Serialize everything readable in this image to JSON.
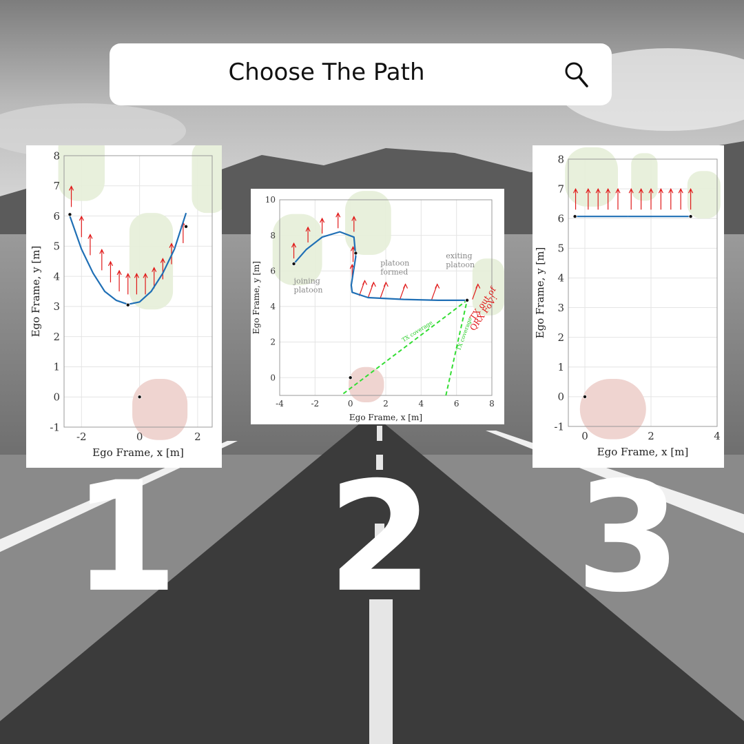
{
  "search": {
    "text": "Choose The Path",
    "icon": "search-icon"
  },
  "options": [
    {
      "number": "1"
    },
    {
      "number": "2"
    },
    {
      "number": "3"
    }
  ],
  "colors": {
    "path": "#1f6fb5",
    "arrow": "#e01818",
    "coverage": "#33dd33",
    "ego_vehicle": "#efd4d0",
    "other_vehicle": "#e6eed8"
  },
  "chart_data": [
    {
      "type": "line",
      "xlabel": "Ego Frame, x   [m]",
      "ylabel": "Ego Frame, y   [m]",
      "xlim": [
        -2.6,
        2.5
      ],
      "ylim": [
        -1,
        8
      ],
      "xticks": [
        -2,
        0,
        2
      ],
      "yticks": [
        -1,
        0,
        1,
        2,
        3,
        4,
        5,
        6,
        7,
        8
      ],
      "grid": true,
      "series": [
        {
          "x": [
            -2.4,
            -2.0,
            -1.6,
            -1.2,
            -0.8,
            -0.4,
            0.0,
            0.4,
            0.8,
            1.2,
            1.6
          ],
          "y": [
            6.0,
            4.9,
            4.1,
            3.5,
            3.2,
            3.07,
            3.15,
            3.5,
            4.1,
            4.9,
            6.1
          ]
        }
      ],
      "points": [
        {
          "x": -2.4,
          "y": 6.05
        },
        {
          "x": -0.4,
          "y": 3.05
        },
        {
          "x": 1.6,
          "y": 5.65
        },
        {
          "x": 0,
          "y": 0
        }
      ],
      "arrows": [
        {
          "x": -2.35,
          "y": 6.3
        },
        {
          "x": -2.0,
          "y": 5.3
        },
        {
          "x": -1.7,
          "y": 4.7
        },
        {
          "x": -1.3,
          "y": 4.2
        },
        {
          "x": -1.0,
          "y": 3.8
        },
        {
          "x": -0.7,
          "y": 3.5
        },
        {
          "x": -0.4,
          "y": 3.4
        },
        {
          "x": -0.1,
          "y": 3.4
        },
        {
          "x": 0.2,
          "y": 3.4
        },
        {
          "x": 0.5,
          "y": 3.6
        },
        {
          "x": 0.8,
          "y": 3.9
        },
        {
          "x": 1.1,
          "y": 4.4
        },
        {
          "x": 1.5,
          "y": 5.1
        }
      ]
    },
    {
      "type": "line",
      "xlabel": "Ego Frame, x   [m]",
      "ylabel": "Ego Frame, y   [m]",
      "xlim": [
        -4,
        8
      ],
      "ylim": [
        -1,
        10
      ],
      "xticks": [
        -4,
        -2,
        0,
        2,
        4,
        6,
        8
      ],
      "yticks": [
        0,
        2,
        4,
        6,
        8,
        10
      ],
      "grid": true,
      "series": [
        {
          "x": [
            -3.2,
            -2.5,
            -1.6,
            -0.6,
            0.2,
            0.3,
            0.05,
            0.1,
            1.0,
            3.0,
            5.0,
            6.6
          ],
          "y": [
            6.4,
            7.2,
            7.9,
            8.2,
            7.9,
            6.8,
            5.2,
            4.8,
            4.5,
            4.4,
            4.35,
            4.35
          ]
        }
      ],
      "points": [
        {
          "x": -3.2,
          "y": 6.4
        },
        {
          "x": 0.3,
          "y": 7.0
        },
        {
          "x": 6.6,
          "y": 4.35
        },
        {
          "x": 0,
          "y": 0
        }
      ],
      "annotations": [
        {
          "text": "joining",
          "x": -3.2,
          "y": 5.3,
          "color": "#888888"
        },
        {
          "text": "platoon",
          "x": -3.2,
          "y": 4.8,
          "color": "#888888"
        },
        {
          "text": "platoon",
          "x": 1.7,
          "y": 6.3,
          "color": "#888888"
        },
        {
          "text": "formed",
          "x": 1.7,
          "y": 5.8,
          "color": "#888888"
        },
        {
          "text": "exiting",
          "x": 5.4,
          "y": 6.7,
          "color": "#888888"
        },
        {
          "text": "platoon",
          "x": 5.4,
          "y": 6.2,
          "color": "#888888"
        },
        {
          "text": "TX coverage",
          "x": 3.0,
          "y": 2.0,
          "color": "#22cc22"
        },
        {
          "text": "TX coverage",
          "x": 6.2,
          "y": 1.5,
          "color": "#22cc22"
        },
        {
          "text": "TX out of",
          "x": 7.0,
          "y": 3.2,
          "color": "#e01818"
        },
        {
          "text": "QRX FoV!",
          "x": 7.0,
          "y": 2.6,
          "color": "#e01818"
        }
      ],
      "arrows": [
        {
          "x": -3.2,
          "y": 6.7
        },
        {
          "x": -2.4,
          "y": 7.6
        },
        {
          "x": -1.6,
          "y": 8.1
        },
        {
          "x": -0.7,
          "y": 8.4
        },
        {
          "x": 0.2,
          "y": 8.2
        },
        {
          "x": 0.15,
          "y": 6.5
        },
        {
          "x": 0.1,
          "y": 5.5
        },
        {
          "x": 0.5,
          "y": 4.6
        },
        {
          "x": 1.0,
          "y": 4.5
        },
        {
          "x": 1.7,
          "y": 4.5
        },
        {
          "x": 2.8,
          "y": 4.4
        },
        {
          "x": 4.6,
          "y": 4.4
        },
        {
          "x": 6.9,
          "y": 4.4
        }
      ]
    },
    {
      "type": "line",
      "xlabel": "Ego Frame, x   [m]",
      "ylabel": "Ego Frame, y   [m]",
      "xlim": [
        -0.5,
        4
      ],
      "ylim": [
        -1,
        8
      ],
      "xticks": [
        0,
        2,
        4
      ],
      "yticks": [
        -1,
        0,
        1,
        2,
        3,
        4,
        5,
        6,
        7,
        8
      ],
      "grid": true,
      "series": [
        {
          "x": [
            -0.3,
            1.3
          ],
          "y": [
            6.07,
            6.07
          ]
        },
        {
          "x": [
            1.3,
            3.2
          ],
          "y": [
            6.07,
            6.07
          ]
        }
      ],
      "points": [
        {
          "x": -0.3,
          "y": 6.07
        },
        {
          "x": 3.2,
          "y": 6.07
        },
        {
          "x": 0,
          "y": 0
        }
      ],
      "arrows": [
        {
          "x": -0.28,
          "y": 6.3
        },
        {
          "x": 0.1,
          "y": 6.3
        },
        {
          "x": 0.4,
          "y": 6.3
        },
        {
          "x": 0.7,
          "y": 6.3
        },
        {
          "x": 1.0,
          "y": 6.3
        },
        {
          "x": 1.4,
          "y": 6.3
        },
        {
          "x": 1.7,
          "y": 6.3
        },
        {
          "x": 2.0,
          "y": 6.3
        },
        {
          "x": 2.3,
          "y": 6.3
        },
        {
          "x": 2.6,
          "y": 6.3
        },
        {
          "x": 2.9,
          "y": 6.3
        },
        {
          "x": 3.2,
          "y": 6.3
        }
      ]
    }
  ]
}
